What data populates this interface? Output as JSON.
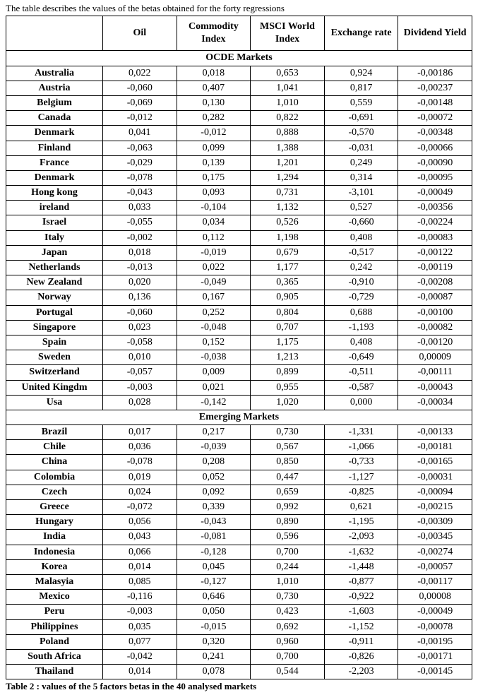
{
  "pre_text": "The table describes the values of the betas obtained for the forty regressions",
  "post_text": "Table 2 : values of the 5 factors betas in the 40 analysed markets",
  "columns": [
    "Oil",
    "Commodity Index",
    "MSCI World Index",
    "Exchange rate",
    "Dividend Yield"
  ],
  "section1_label": "OCDE Markets",
  "section2_label": "Emerging Markets",
  "ocde_rows": [
    {
      "country": "Australia",
      "v": [
        "0,022",
        "0,018",
        "0,653",
        "0,924",
        "-0,00186"
      ]
    },
    {
      "country": "Austria",
      "v": [
        "-0,060",
        "0,407",
        "1,041",
        "0,817",
        "-0,00237"
      ]
    },
    {
      "country": "Belgium",
      "v": [
        "-0,069",
        "0,130",
        "1,010",
        "0,559",
        "-0,00148"
      ]
    },
    {
      "country": "Canada",
      "v": [
        "-0,012",
        "0,282",
        "0,822",
        "-0,691",
        "-0,00072"
      ]
    },
    {
      "country": "Denmark",
      "v": [
        "0,041",
        "-0,012",
        "0,888",
        "-0,570",
        "-0,00348"
      ]
    },
    {
      "country": "Finland",
      "v": [
        "-0,063",
        "0,099",
        "1,388",
        "-0,031",
        "-0,00066"
      ]
    },
    {
      "country": "France",
      "v": [
        "-0,029",
        "0,139",
        "1,201",
        "0,249",
        "-0,00090"
      ]
    },
    {
      "country": "Denmark",
      "v": [
        "-0,078",
        "0,175",
        "1,294",
        "0,314",
        "-0,00095"
      ]
    },
    {
      "country": "Hong kong",
      "v": [
        "-0,043",
        "0,093",
        "0,731",
        "-3,101",
        "-0,00049"
      ]
    },
    {
      "country": "ireland",
      "v": [
        "0,033",
        "-0,104",
        "1,132",
        "0,527",
        "-0,00356"
      ]
    },
    {
      "country": "Israel",
      "v": [
        "-0,055",
        "0,034",
        "0,526",
        "-0,660",
        "-0,00224"
      ]
    },
    {
      "country": "Italy",
      "v": [
        "-0,002",
        "0,112",
        "1,198",
        "0,408",
        "-0,00083"
      ]
    },
    {
      "country": "Japan",
      "v": [
        "0,018",
        "-0,019",
        "0,679",
        "-0,517",
        "-0,00122"
      ]
    },
    {
      "country": "Netherlands",
      "v": [
        "-0,013",
        "0,022",
        "1,177",
        "0,242",
        "-0,00119"
      ]
    },
    {
      "country": "New Zealand",
      "v": [
        "0,020",
        "-0,049",
        "0,365",
        "-0,910",
        "-0,00208"
      ]
    },
    {
      "country": "Norway",
      "v": [
        "0,136",
        "0,167",
        "0,905",
        "-0,729",
        "-0,00087"
      ]
    },
    {
      "country": "Portugal",
      "v": [
        "-0,060",
        "0,252",
        "0,804",
        "0,688",
        "-0,00100"
      ]
    },
    {
      "country": "Singapore",
      "v": [
        "0,023",
        "-0,048",
        "0,707",
        "-1,193",
        "-0,00082"
      ]
    },
    {
      "country": "Spain",
      "v": [
        "-0,058",
        "0,152",
        "1,175",
        "0,408",
        "-0,00120"
      ]
    },
    {
      "country": "Sweden",
      "v": [
        "0,010",
        "-0,038",
        "1,213",
        "-0,649",
        "0,00009"
      ]
    },
    {
      "country": "Switzerland",
      "v": [
        "-0,057",
        "0,009",
        "0,899",
        "-0,511",
        "-0,00111"
      ]
    },
    {
      "country": "United Kingdm",
      "v": [
        "-0,003",
        "0,021",
        "0,955",
        "-0,587",
        "-0,00043"
      ]
    },
    {
      "country": "Usa",
      "v": [
        "0,028",
        "-0,142",
        "1,020",
        "0,000",
        "-0,00034"
      ]
    }
  ],
  "emerging_rows": [
    {
      "country": "Brazil",
      "v": [
        "0,017",
        "0,217",
        "0,730",
        "-1,331",
        "-0,00133"
      ]
    },
    {
      "country": "Chile",
      "v": [
        "0,036",
        "-0,039",
        "0,567",
        "-1,066",
        "-0,00181"
      ]
    },
    {
      "country": "China",
      "v": [
        "-0,078",
        "0,208",
        "0,850",
        "-0,733",
        "-0,00165"
      ]
    },
    {
      "country": "Colombia",
      "v": [
        "0,019",
        "0,052",
        "0,447",
        "-1,127",
        "-0,00031"
      ]
    },
    {
      "country": "Czech",
      "v": [
        "0,024",
        "0,092",
        "0,659",
        "-0,825",
        "-0,00094"
      ]
    },
    {
      "country": "Greece",
      "v": [
        "-0,072",
        "0,339",
        "0,992",
        "0,621",
        "-0,00215"
      ]
    },
    {
      "country": "Hungary",
      "v": [
        "0,056",
        "-0,043",
        "0,890",
        "-1,195",
        "-0,00309"
      ]
    },
    {
      "country": "India",
      "v": [
        "0,043",
        "-0,081",
        "0,596",
        "-2,093",
        "-0,00345"
      ]
    },
    {
      "country": "Indonesia",
      "v": [
        "0,066",
        "-0,128",
        "0,700",
        "-1,632",
        "-0,00274"
      ]
    },
    {
      "country": "Korea",
      "v": [
        "0,014",
        "0,045",
        "0,244",
        "-1,448",
        "-0,00057"
      ]
    },
    {
      "country": "Malasyia",
      "v": [
        "0,085",
        "-0,127",
        "1,010",
        "-0,877",
        "-0,00117"
      ]
    },
    {
      "country": "Mexico",
      "v": [
        "-0,116",
        "0,646",
        "0,730",
        "-0,922",
        "0,00008"
      ]
    },
    {
      "country": "Peru",
      "v": [
        "-0,003",
        "0,050",
        "0,423",
        "-1,603",
        "-0,00049"
      ]
    },
    {
      "country": "Philippines",
      "v": [
        "0,035",
        "-0,015",
        "0,692",
        "-1,152",
        "-0,00078"
      ]
    },
    {
      "country": "Poland",
      "v": [
        "0,077",
        "0,320",
        "0,960",
        "-0,911",
        "-0,00195"
      ]
    },
    {
      "country": "South Africa",
      "v": [
        "-0,042",
        "0,241",
        "0,700",
        "-0,826",
        "-0,00171"
      ]
    },
    {
      "country": "Thailand",
      "v": [
        "0,014",
        "0,078",
        "0,544",
        "-2,203",
        "-0,00145"
      ]
    }
  ]
}
